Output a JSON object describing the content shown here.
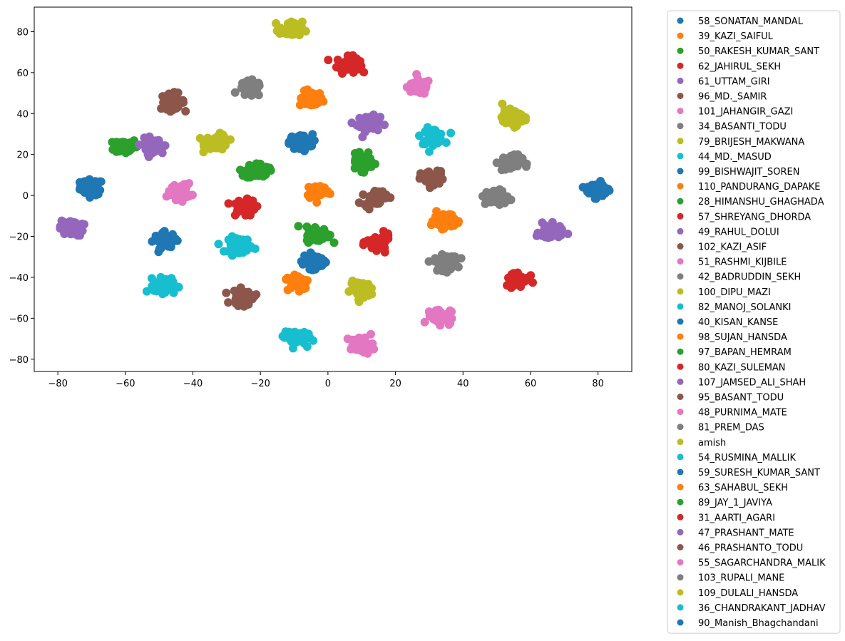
{
  "chart_data": {
    "type": "scatter",
    "title": "",
    "xlabel": "",
    "ylabel": "",
    "xlim": [
      -87,
      90
    ],
    "ylim": [
      -86,
      92
    ],
    "xticks": [
      -80,
      -60,
      -40,
      -20,
      0,
      20,
      40,
      60,
      80
    ],
    "yticks": [
      -80,
      -60,
      -40,
      -20,
      0,
      20,
      40,
      60,
      80
    ],
    "grid": false,
    "legend_position": "outside-right",
    "series": [
      {
        "name": "58_SONATAN_MANDAL",
        "color": "#1f77b4",
        "center": [
          -70,
          4
        ]
      },
      {
        "name": "39_KAZI_SAIFUL",
        "color": "#ff7f0e",
        "center": [
          -5,
          47
        ]
      },
      {
        "name": "50_RAKESH_KUMAR_SANT",
        "color": "#2ca02c",
        "center": [
          -60,
          24
        ]
      },
      {
        "name": "62_JAHIRUL_SEKH",
        "color": "#d62728",
        "center": [
          6,
          64
        ]
      },
      {
        "name": "61_UTTAM_GIRI",
        "color": "#9467bd",
        "center": [
          12,
          35
        ]
      },
      {
        "name": "96_MD._SAMIR",
        "color": "#8c564b",
        "center": [
          -46,
          46
        ]
      },
      {
        "name": "101_JAHANGIR_GAZI",
        "color": "#e377c2",
        "center": [
          27,
          53
        ]
      },
      {
        "name": "34_BASANTI_TODU",
        "color": "#7f7f7f",
        "center": [
          -23,
          52
        ]
      },
      {
        "name": "79_BRIJESH_MAKWANA",
        "color": "#bcbd22",
        "center": [
          -33,
          26
        ]
      },
      {
        "name": "44_MD._MASUD",
        "color": "#17becf",
        "center": [
          31,
          29
        ]
      },
      {
        "name": "99_BISHWAJIT_SOREN",
        "color": "#1f77b4",
        "center": [
          -8,
          26
        ]
      },
      {
        "name": "110_PANDURANG_DAPAKE",
        "color": "#ff7f0e",
        "center": [
          -3,
          2
        ]
      },
      {
        "name": "28_HIMANSHU_GHAGHADA",
        "color": "#2ca02c",
        "center": [
          -21,
          12
        ]
      },
      {
        "name": "57_SHREYANG_DHORDA",
        "color": "#d62728",
        "center": [
          -25,
          -6
        ]
      },
      {
        "name": "49_RAHUL_DOLUI",
        "color": "#9467bd",
        "center": [
          -76,
          -16
        ]
      },
      {
        "name": "102_KAZI_ASIF",
        "color": "#8c564b",
        "center": [
          31,
          8
        ]
      },
      {
        "name": "51_RASHMI_KIJBILE",
        "color": "#e377c2",
        "center": [
          -44,
          2
        ]
      },
      {
        "name": "42_BADRUDDIN_SEKH",
        "color": "#7f7f7f",
        "center": [
          35,
          -33
        ]
      },
      {
        "name": "100_DIPU_MAZI",
        "color": "#bcbd22",
        "center": [
          10,
          -46
        ]
      },
      {
        "name": "82_MANOJ_SOLANKI",
        "color": "#17becf",
        "center": [
          -26,
          -24
        ]
      },
      {
        "name": "40_KISAN_KANSE",
        "color": "#1f77b4",
        "center": [
          -48,
          -22
        ]
      },
      {
        "name": "98_SUJAN_HANSDA",
        "color": "#ff7f0e",
        "center": [
          34,
          -12
        ]
      },
      {
        "name": "97_BAPAN_HEMRAM",
        "color": "#2ca02c",
        "center": [
          10,
          16
        ]
      },
      {
        "name": "80_KAZI_SULEMAN",
        "color": "#d62728",
        "center": [
          15,
          -23
        ]
      },
      {
        "name": "107_JAMSED_ALI_SHAH",
        "color": "#9467bd",
        "center": [
          66,
          -18
        ]
      },
      {
        "name": "95_BASANT_TODU",
        "color": "#8c564b",
        "center": [
          -25,
          -50
        ]
      },
      {
        "name": "48_PURNIMA_MATE",
        "color": "#e377c2",
        "center": [
          33,
          -59
        ]
      },
      {
        "name": "81_PREM_DAS",
        "color": "#7f7f7f",
        "center": [
          54,
          16
        ]
      },
      {
        "name": "amish",
        "color": "#bcbd22",
        "center": [
          -11,
          81
        ]
      },
      {
        "name": "54_RUSMINA_MALLIK",
        "color": "#17becf",
        "center": [
          -48,
          -44
        ]
      },
      {
        "name": "59_SURESH_KUMAR_SANT",
        "color": "#1f77b4",
        "center": [
          80,
          3
        ]
      },
      {
        "name": "63_SAHABUL_SEKH",
        "color": "#ff7f0e",
        "center": [
          -9,
          -42
        ]
      },
      {
        "name": "89_JAY_1_JAVIYA",
        "color": "#2ca02c",
        "center": [
          -3,
          -19
        ]
      },
      {
        "name": "31_AARTI_AGARI",
        "color": "#d62728",
        "center": [
          56,
          -41
        ]
      },
      {
        "name": "47_PRASHANT_MATE",
        "color": "#9467bd",
        "center": [
          -52,
          24
        ]
      },
      {
        "name": "46_PRASHANTO_TODU",
        "color": "#8c564b",
        "center": [
          14,
          -1
        ]
      },
      {
        "name": "55_SAGARCHANDRA_MALIK",
        "color": "#e377c2",
        "center": [
          10,
          -73
        ]
      },
      {
        "name": "103_RUPALI_MANE",
        "color": "#7f7f7f",
        "center": [
          50,
          -1
        ]
      },
      {
        "name": "109_DULALI_HANSDA",
        "color": "#bcbd22",
        "center": [
          55,
          38
        ]
      },
      {
        "name": "36_CHANDRAKANT_JADHAV",
        "color": "#17becf",
        "center": [
          -10,
          -69
        ]
      },
      {
        "name": "90_Manish_Bhagchandani",
        "color": "#1f77b4",
        "center": [
          -4,
          -32
        ]
      }
    ]
  }
}
